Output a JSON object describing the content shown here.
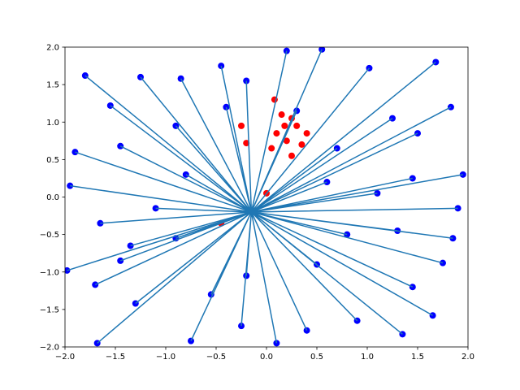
{
  "chart_data": {
    "type": "scatter",
    "xlim": [
      -2,
      2
    ],
    "ylim": [
      -2,
      2
    ],
    "xticks": [
      {
        "value": -2,
        "label": "−2.0"
      },
      {
        "value": -1.5,
        "label": "−1.5"
      },
      {
        "value": -1,
        "label": "−1.0"
      },
      {
        "value": -0.5,
        "label": "−0.5"
      },
      {
        "value": 0,
        "label": "0.0"
      },
      0.5,
      {
        "value": 1,
        "label": "1.0"
      },
      1.5,
      {
        "value": 2,
        "label": "2.0"
      }
    ],
    "yticks": [
      {
        "value": -2,
        "label": "−2.0"
      },
      {
        "value": -1.5,
        "label": "−1.5"
      },
      {
        "value": -1,
        "label": "−1.0"
      },
      {
        "value": -0.5,
        "label": "−0.5"
      },
      {
        "value": 0,
        "label": "0.0"
      },
      0.5,
      {
        "value": 1,
        "label": "1.0"
      },
      1.5,
      {
        "value": 2,
        "label": "2.0"
      }
    ],
    "series": [
      {
        "kind": "scatter",
        "color": "#ff0000",
        "x": [
          0.08,
          0.15,
          0.25,
          0.3,
          0.1,
          0.2,
          0.35,
          0.05,
          0.25,
          -0.2,
          -0.25,
          0.4,
          0.18,
          -0.45,
          0.0
        ],
        "y": [
          1.3,
          1.1,
          1.05,
          0.95,
          0.85,
          0.75,
          0.7,
          0.65,
          0.55,
          0.72,
          0.95,
          0.85,
          0.95,
          -0.35,
          0.05
        ]
      },
      {
        "kind": "scatter",
        "color": "#0000ff",
        "x": [
          -1.8,
          -1.55,
          -1.25,
          -0.85,
          -0.45,
          -0.2,
          0.2,
          0.55,
          1.02,
          1.68,
          1.83,
          1.25,
          1.5,
          1.95,
          1.9,
          1.45,
          1.85,
          1.75,
          1.45,
          1.65,
          1.35,
          0.9,
          0.4,
          0.1,
          -0.25,
          -0.75,
          -1.3,
          -1.68,
          -1.7,
          -1.98,
          -1.45,
          -1.65,
          -1.95,
          -1.9,
          -1.45,
          -0.9,
          -0.4,
          0.3,
          0.7,
          1.1,
          0.8,
          0.5,
          -0.2,
          -0.9,
          -1.1,
          -0.8,
          0.6,
          -1.35,
          1.3,
          -0.55
        ],
        "y": [
          1.62,
          1.22,
          1.6,
          1.58,
          1.75,
          1.55,
          1.95,
          1.97,
          1.72,
          1.8,
          1.2,
          1.05,
          0.85,
          0.3,
          -0.15,
          0.25,
          -0.55,
          -0.88,
          -1.2,
          -1.58,
          -1.83,
          -1.65,
          -1.78,
          -1.95,
          -1.72,
          -1.92,
          -1.42,
          -1.95,
          -1.17,
          -0.98,
          -0.85,
          -0.35,
          0.15,
          0.6,
          0.68,
          0.95,
          1.2,
          1.15,
          0.65,
          0.05,
          -0.5,
          -0.9,
          -1.05,
          -0.55,
          -0.15,
          0.3,
          0.2,
          -0.65,
          -0.45,
          -1.3
        ]
      },
      {
        "kind": "line",
        "color": "#1f77b4",
        "x": [
          -1.8,
          -0.15,
          null,
          -1.55,
          -0.15,
          null,
          -1.25,
          -0.15,
          null,
          -0.85,
          -0.15,
          null,
          -0.45,
          -0.15,
          null,
          -0.2,
          -0.15,
          null,
          0.2,
          -0.15,
          null,
          0.55,
          -0.15,
          null,
          1.02,
          -0.15,
          null,
          1.68,
          -0.15,
          null,
          1.83,
          -0.15,
          null,
          1.25,
          -0.15,
          null,
          1.5,
          -0.15,
          null,
          1.95,
          -0.15,
          null,
          1.9,
          -0.15,
          null,
          1.45,
          -0.15,
          null,
          1.85,
          -0.15,
          null,
          1.75,
          -0.15,
          null,
          1.45,
          -0.15,
          null,
          1.65,
          -0.15,
          null,
          1.35,
          -0.15,
          null,
          0.9,
          -0.15,
          null,
          0.4,
          -0.15,
          null,
          0.1,
          -0.15,
          null,
          -0.25,
          -0.15,
          null,
          -0.75,
          -0.15,
          null,
          -1.3,
          -0.15,
          null,
          -1.68,
          -0.15,
          null,
          -1.7,
          -0.15,
          null,
          -1.98,
          -0.15,
          null,
          -1.45,
          -0.15,
          null,
          -1.65,
          -0.15,
          null,
          -1.95,
          -0.15,
          null,
          -1.9,
          -0.15,
          null,
          -1.45,
          -0.15,
          null,
          -0.9,
          -0.15,
          null,
          -0.4,
          -0.15,
          null,
          0.3,
          -0.15,
          null,
          0.7,
          -0.15,
          null,
          1.1,
          -0.15,
          null,
          0.8,
          -0.15,
          null,
          0.5,
          -0.15,
          null,
          -0.2,
          -0.15,
          null,
          -0.9,
          -0.15,
          null,
          -1.1,
          -0.15,
          null,
          -0.8,
          -0.15,
          null,
          0.6,
          -0.15,
          null,
          -1.35,
          -0.15,
          null,
          1.3,
          -0.15,
          null,
          -0.55,
          -0.15
        ],
        "y": [
          1.62,
          -0.2,
          null,
          1.22,
          -0.2,
          null,
          1.6,
          -0.2,
          null,
          1.58,
          -0.2,
          null,
          1.75,
          -0.2,
          null,
          1.55,
          -0.2,
          null,
          1.95,
          -0.2,
          null,
          1.97,
          -0.2,
          null,
          1.72,
          -0.2,
          null,
          1.8,
          -0.2,
          null,
          1.2,
          -0.2,
          null,
          1.05,
          -0.2,
          null,
          0.85,
          -0.2,
          null,
          0.3,
          -0.2,
          null,
          -0.15,
          -0.2,
          null,
          0.25,
          -0.2,
          null,
          -0.55,
          -0.2,
          null,
          -0.88,
          -0.2,
          null,
          -1.2,
          -0.2,
          null,
          -1.58,
          -0.2,
          null,
          -1.83,
          -0.2,
          null,
          -1.65,
          -0.2,
          null,
          -1.78,
          -0.2,
          null,
          -1.95,
          -0.2,
          null,
          -1.72,
          -0.2,
          null,
          -1.92,
          -0.2,
          null,
          -1.42,
          -0.2,
          null,
          -1.95,
          -0.2,
          null,
          -1.17,
          -0.2,
          null,
          -0.98,
          -0.2,
          null,
          -0.85,
          -0.2,
          null,
          -0.35,
          -0.2,
          null,
          0.15,
          -0.2,
          null,
          0.6,
          -0.2,
          null,
          0.68,
          -0.2,
          null,
          0.95,
          -0.2,
          null,
          1.2,
          -0.2,
          null,
          1.15,
          -0.2,
          null,
          0.65,
          -0.2,
          null,
          0.05,
          -0.2,
          null,
          -0.5,
          -0.2,
          null,
          -0.9,
          -0.2,
          null,
          -1.05,
          -0.2,
          null,
          -0.55,
          -0.2,
          null,
          -0.15,
          -0.2,
          null,
          0.3,
          -0.2,
          null,
          0.2,
          -0.2,
          null,
          -0.65,
          -0.2,
          null,
          -0.45,
          -0.2,
          null,
          -1.3,
          -0.2
        ]
      }
    ]
  }
}
